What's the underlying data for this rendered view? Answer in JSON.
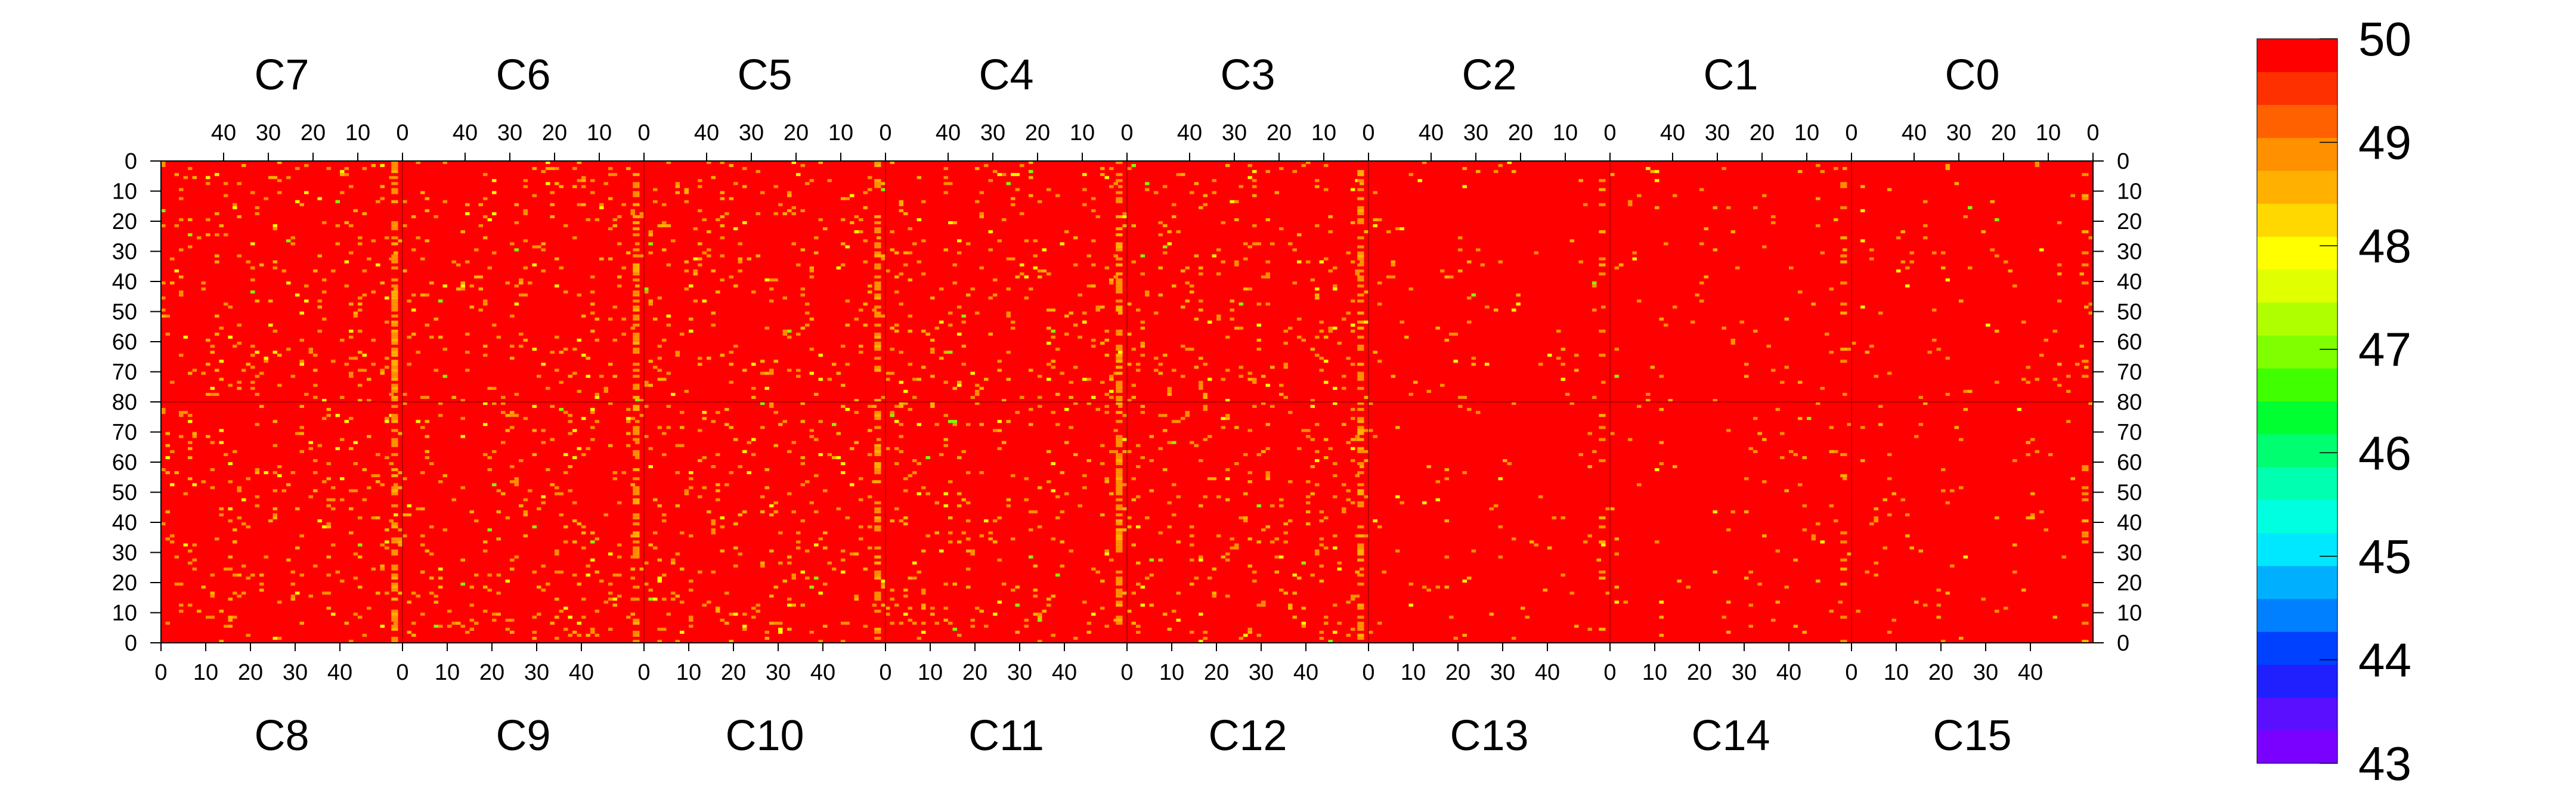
{
  "chart_data": {
    "type": "heatmap",
    "title": "",
    "xlabel": "",
    "ylabel": "",
    "top_chip_labels": [
      "C7",
      "C6",
      "C5",
      "C4",
      "C3",
      "C2",
      "C1",
      "C0"
    ],
    "bottom_chip_labels": [
      "C8",
      "C9",
      "C10",
      "C11",
      "C12",
      "C13",
      "C14",
      "C15"
    ],
    "top_x_ticks": [
      "40",
      "30",
      "20",
      "10",
      "0"
    ],
    "bottom_x_ticks": [
      "0",
      "10",
      "20",
      "30",
      "40"
    ],
    "x_range_per_chip": [
      0,
      54
    ],
    "y_ticks_upper": [
      "0",
      "10",
      "20",
      "30",
      "40",
      "50",
      "60",
      "70",
      "80"
    ],
    "y_ticks_lower": [
      "70",
      "60",
      "50",
      "40",
      "30",
      "20",
      "10",
      "0"
    ],
    "y_range_per_half": [
      0,
      80
    ],
    "zlim": [
      43,
      50
    ],
    "colorbar_ticks": [
      "50",
      "49",
      "48",
      "47",
      "46",
      "45",
      "44",
      "43"
    ],
    "background_value": 50,
    "scatter_values": [
      49,
      48.5,
      48,
      47
    ],
    "palette": [
      "#7a00ff",
      "#5a10ff",
      "#2020ff",
      "#0040ff",
      "#0080ff",
      "#00b0ff",
      "#00e8ff",
      "#00ffe0",
      "#00ffb0",
      "#00ff70",
      "#00ff30",
      "#40ff00",
      "#80ff00",
      "#b0ff00",
      "#e0ff00",
      "#ffff00",
      "#ffd800",
      "#ffb000",
      "#ff9000",
      "#ff6000",
      "#ff3000",
      "#ff0000"
    ],
    "grid": false,
    "legend": "none"
  }
}
